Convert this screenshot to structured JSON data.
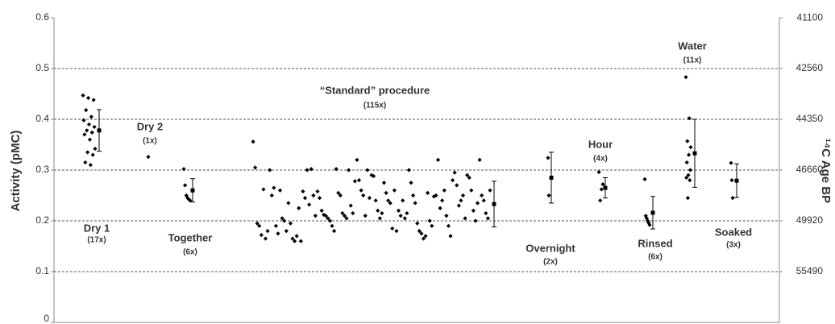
{
  "chart_data": {
    "type": "scatter",
    "ylabel": "Activity (pMC)",
    "y2label": "¹⁴C Age BP",
    "ylim": [
      0,
      0.6
    ],
    "yticks": [
      0,
      0.1,
      0.2,
      0.3,
      0.4,
      0.5,
      0.6
    ],
    "y2ticks": [
      41100,
      42560,
      44350,
      46660,
      49920,
      55490
    ],
    "grid": true,
    "color": "#000000",
    "groups": [
      {
        "name": "Dry 1",
        "count": "(17x)",
        "values": [
          0.447,
          0.442,
          0.438,
          0.418,
          0.405,
          0.398,
          0.39,
          0.385,
          0.378,
          0.374,
          0.37,
          0.36,
          0.342,
          0.335,
          0.33,
          0.315,
          0.31
        ],
        "mean": 0.378,
        "error": 0.041
      },
      {
        "name": "Dry 2",
        "count": "(1x)",
        "values": [
          0.326
        ]
      },
      {
        "name": "Together",
        "count": "(6x)",
        "values": [
          0.302,
          0.27,
          0.25,
          0.245,
          0.242,
          0.24
        ],
        "mean": 0.26,
        "error": 0.023
      },
      {
        "name": "“Standard” procedure",
        "count": "(115x)",
        "values": [
          0.356,
          0.305,
          0.195,
          0.19,
          0.172,
          0.262,
          0.165,
          0.18,
          0.3,
          0.25,
          0.265,
          0.19,
          0.175,
          0.26,
          0.205,
          0.2,
          0.18,
          0.235,
          0.195,
          0.165,
          0.16,
          0.17,
          0.225,
          0.16,
          0.258,
          0.245,
          0.3,
          0.232,
          0.302,
          0.25,
          0.21,
          0.258,
          0.245,
          0.22,
          0.212,
          0.21,
          0.205,
          0.2,
          0.19,
          0.18,
          0.302,
          0.255,
          0.25,
          0.215,
          0.21,
          0.205,
          0.3,
          0.23,
          0.215,
          0.278,
          0.32,
          0.28,
          0.26,
          0.25,
          0.21,
          0.3,
          0.245,
          0.29,
          0.288,
          0.24,
          0.22,
          0.205,
          0.215,
          0.275,
          0.255,
          0.24,
          0.235,
          0.185,
          0.26,
          0.18,
          0.22,
          0.21,
          0.24,
          0.205,
          0.215,
          0.3,
          0.275,
          0.25,
          0.235,
          0.195,
          0.18,
          0.175,
          0.165,
          0.17,
          0.255,
          0.2,
          0.19,
          0.248,
          0.25,
          0.32,
          0.225,
          0.24,
          0.26,
          0.21,
          0.19,
          0.17,
          0.28,
          0.295,
          0.27,
          0.23,
          0.24,
          0.25,
          0.205,
          0.29,
          0.285,
          0.26,
          0.22,
          0.2,
          0.235,
          0.32,
          0.25,
          0.24,
          0.215,
          0.205,
          0.26
        ],
        "mean": 0.233,
        "error": 0.045
      },
      {
        "name": "Overnight",
        "count": "(2x)",
        "values": [
          0.324,
          0.25
        ],
        "mean": 0.285,
        "error": 0.05
      },
      {
        "name": "Hour",
        "count": "(4x)",
        "values": [
          0.296,
          0.272,
          0.262,
          0.24
        ],
        "mean": 0.265,
        "error": 0.02
      },
      {
        "name": "Rinsed",
        "count": "(6x)",
        "values": [
          0.282,
          0.21,
          0.205,
          0.2,
          0.196,
          0.192
        ],
        "mean": 0.216,
        "error": 0.032
      },
      {
        "name": "Water",
        "count": "(11x)",
        "values": [
          0.483,
          0.402,
          0.357,
          0.345,
          0.33,
          0.315,
          0.3,
          0.29,
          0.285,
          0.28,
          0.245
        ],
        "mean": 0.333,
        "error": 0.067
      },
      {
        "name": "Soaked",
        "count": "(3x)",
        "values": [
          0.314,
          0.28,
          0.245
        ],
        "mean": 0.279,
        "error": 0.033
      }
    ]
  }
}
